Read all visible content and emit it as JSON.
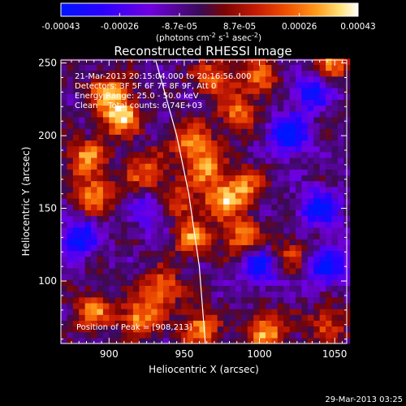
{
  "colorbar": {
    "tick_labels": [
      "-0.00043",
      "-0.00026",
      "-8.7e-05",
      "8.7e-05",
      "0.00026",
      "0.00043"
    ],
    "unit_parts": [
      "(photons cm",
      "-2",
      " s",
      "-1",
      " asec",
      "-2",
      ")"
    ],
    "min": -0.00043,
    "max": 0.00043
  },
  "footer": {
    "timestamp": "29-Mar-2013 03:25"
  },
  "chart_data": {
    "type": "heatmap",
    "title": "Reconstructed RHESSI Image",
    "xlabel": "Heliocentric X (arcsec)",
    "ylabel": "Heliocentric Y (arcsec)",
    "xlim": [
      868,
      1058
    ],
    "ylim": [
      57,
      252
    ],
    "x_ticks": [
      900,
      950,
      1000,
      1050
    ],
    "y_ticks": [
      100,
      150,
      200,
      250
    ],
    "annotations": [
      "21-Mar-2013 20:15:04.000 to 20:16:56.000",
      "Detectors: 3F 5F 6F 7F 8F 9F, Att 0",
      "Energy Range: 25.0 - 50.0 keV",
      "Clean    Total counts: 6.74E+03"
    ],
    "peak_text": "Position of Peak = [908,213]",
    "peak": {
      "x": 908,
      "y": 213
    },
    "limb_curve": [
      [
        931,
        252
      ],
      [
        945,
        200
      ],
      [
        953,
        160
      ],
      [
        960,
        110
      ],
      [
        964,
        57
      ]
    ],
    "colors": {
      "stops": [
        "#0015ff",
        "#2b00ff",
        "#7000e0",
        "#3a0a55",
        "#7a0404",
        "#c81b04",
        "#f05000",
        "#ff9a1a",
        "#ffe27a",
        "#ffffff"
      ],
      "positions": [
        0.0,
        0.14,
        0.3,
        0.47,
        0.55,
        0.66,
        0.76,
        0.86,
        0.94,
        1.0
      ]
    },
    "bright_regions": [
      {
        "x": 908,
        "y": 213,
        "value": 1.0
      },
      {
        "x": 900,
        "y": 230,
        "value": 0.85
      },
      {
        "x": 885,
        "y": 185,
        "value": 0.78
      },
      {
        "x": 890,
        "y": 160,
        "value": 0.8
      },
      {
        "x": 925,
        "y": 175,
        "value": 0.72
      },
      {
        "x": 955,
        "y": 195,
        "value": 0.82
      },
      {
        "x": 965,
        "y": 178,
        "value": 0.78
      },
      {
        "x": 975,
        "y": 155,
        "value": 0.8
      },
      {
        "x": 990,
        "y": 165,
        "value": 0.7
      },
      {
        "x": 988,
        "y": 130,
        "value": 0.78
      },
      {
        "x": 955,
        "y": 130,
        "value": 0.75
      },
      {
        "x": 945,
        "y": 155,
        "value": 0.68
      },
      {
        "x": 985,
        "y": 215,
        "value": 0.7
      },
      {
        "x": 970,
        "y": 240,
        "value": 0.72
      },
      {
        "x": 1000,
        "y": 240,
        "value": 0.68
      },
      {
        "x": 935,
        "y": 95,
        "value": 0.8
      },
      {
        "x": 920,
        "y": 75,
        "value": 0.85
      },
      {
        "x": 890,
        "y": 80,
        "value": 0.75
      },
      {
        "x": 960,
        "y": 68,
        "value": 0.8
      },
      {
        "x": 1005,
        "y": 65,
        "value": 0.9
      },
      {
        "x": 1048,
        "y": 250,
        "value": 0.7
      },
      {
        "x": 1045,
        "y": 70,
        "value": 0.6
      },
      {
        "x": 1020,
        "y": 120,
        "value": 0.5
      }
    ],
    "dark_regions": [
      {
        "x": 1020,
        "y": 200,
        "value": -1.0
      },
      {
        "x": 1040,
        "y": 150,
        "value": -0.9
      },
      {
        "x": 1000,
        "y": 110,
        "value": -0.8
      },
      {
        "x": 880,
        "y": 130,
        "value": -0.85
      },
      {
        "x": 1045,
        "y": 110,
        "value": -0.85
      },
      {
        "x": 930,
        "y": 150,
        "value": -0.6
      },
      {
        "x": 1035,
        "y": 230,
        "value": -0.75
      }
    ]
  }
}
